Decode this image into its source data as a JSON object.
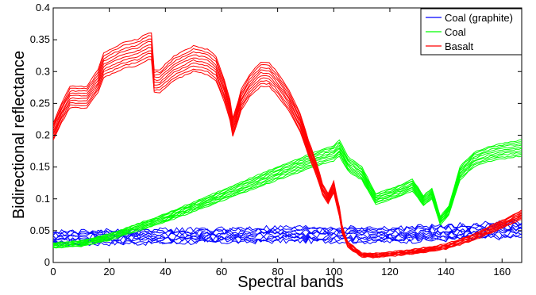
{
  "chart_data": {
    "type": "line",
    "title": "",
    "xlabel": "Spectral bands",
    "ylabel": "Bidirectional reflectance",
    "xlim": [
      0,
      167
    ],
    "ylim": [
      0,
      0.4
    ],
    "x_ticks": [
      0,
      20,
      40,
      60,
      80,
      100,
      120,
      140,
      160
    ],
    "x_tick_labels": [
      "0",
      "20",
      "40",
      "60",
      "80",
      "100",
      "120",
      "140",
      "160"
    ],
    "y_ticks": [
      0,
      0.05,
      0.1,
      0.15,
      0.2,
      0.25,
      0.3,
      0.35,
      0.4
    ],
    "y_tick_labels": [
      "0",
      "0.05",
      "0.1",
      "0.15",
      "0.2",
      "0.25",
      "0.3",
      "0.35",
      "0.4"
    ],
    "grid": false,
    "legend_position": "top-right",
    "series": [
      {
        "name": "Coal (graphite)",
        "color": "#0000ff",
        "x": [
          0,
          20,
          40,
          60,
          80,
          100,
          120,
          140,
          160,
          167
        ],
        "y": [
          0.038,
          0.04,
          0.041,
          0.042,
          0.044,
          0.044,
          0.043,
          0.047,
          0.051,
          0.052
        ]
      },
      {
        "name": "Coal",
        "color": "#00ff00",
        "x": [
          0,
          10,
          20,
          40,
          60,
          80,
          95,
          100,
          102,
          105,
          110,
          115,
          120,
          125,
          128,
          132,
          135,
          138,
          141,
          145,
          150,
          155,
          160,
          167
        ],
        "y": [
          0.027,
          0.03,
          0.04,
          0.07,
          0.105,
          0.14,
          0.165,
          0.172,
          0.18,
          0.155,
          0.14,
          0.1,
          0.107,
          0.115,
          0.122,
          0.097,
          0.108,
          0.066,
          0.082,
          0.14,
          0.162,
          0.17,
          0.175,
          0.18
        ]
      },
      {
        "name": "Basalt",
        "color": "#ff0000",
        "x": [
          0,
          3,
          6,
          12,
          16,
          18,
          25,
          30,
          34,
          35,
          36,
          38,
          43,
          50,
          55,
          58,
          61,
          63,
          64,
          65,
          67,
          70,
          74,
          77,
          80,
          84,
          88,
          91,
          94,
          96,
          98,
          100,
          102,
          103,
          105,
          110,
          115,
          120,
          130,
          140,
          150,
          160,
          167
        ],
        "y": [
          0.205,
          0.235,
          0.26,
          0.26,
          0.285,
          0.31,
          0.325,
          0.33,
          0.34,
          0.34,
          0.285,
          0.285,
          0.305,
          0.32,
          0.315,
          0.305,
          0.27,
          0.24,
          0.213,
          0.225,
          0.255,
          0.278,
          0.296,
          0.295,
          0.28,
          0.255,
          0.22,
          0.18,
          0.145,
          0.115,
          0.1,
          0.118,
          0.08,
          0.052,
          0.028,
          0.012,
          0.011,
          0.013,
          0.018,
          0.025,
          0.04,
          0.06,
          0.075
        ]
      }
    ]
  }
}
